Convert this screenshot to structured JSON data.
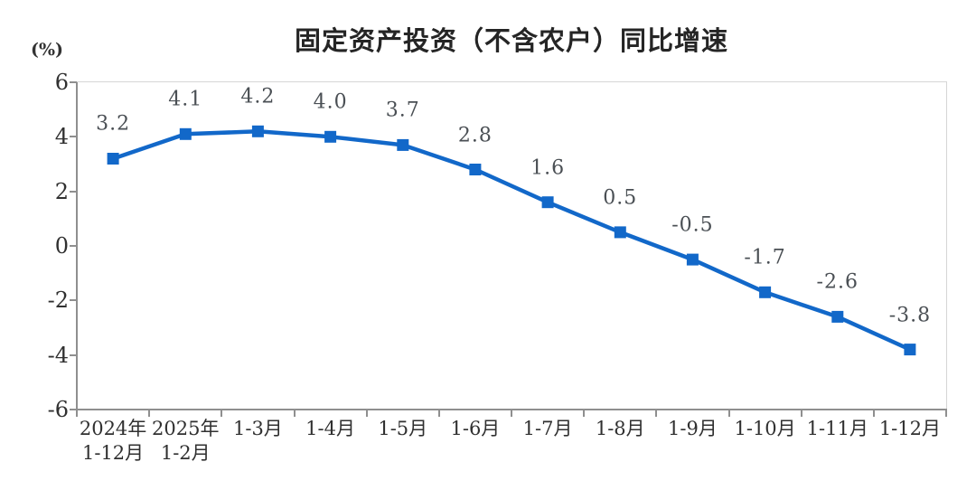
{
  "title": "固定资产投资（不含农户）同比增速",
  "y_axis_unit": "(%)",
  "chart_data": {
    "type": "line",
    "title": "固定资产投资（不含农户）同比增速",
    "ylabel": "(%)",
    "xlabel": "",
    "categories": [
      "2024年\n1-12月",
      "2025年\n1-2月",
      "1-3月",
      "1-4月",
      "1-5月",
      "1-6月",
      "1-7月",
      "1-8月",
      "1-9月",
      "1-10月",
      "1-11月",
      "1-12月"
    ],
    "values": [
      3.2,
      4.1,
      4.2,
      4.0,
      3.7,
      2.8,
      1.6,
      0.5,
      -0.5,
      -1.7,
      -2.6,
      -3.8
    ],
    "point_labels": [
      "3.2",
      "4.1",
      "4.2",
      "4.0",
      "3.7",
      "2.8",
      "1.6",
      "0.5",
      "-0.5",
      "-1.7",
      "-2.6",
      "-3.8"
    ],
    "ylim": [
      -6,
      6
    ],
    "ytick_step": 2,
    "yticks": [
      "6",
      "4",
      "2",
      "0",
      "-2",
      "-4",
      "-6"
    ],
    "grid": false,
    "legend_position": "none",
    "marker": "square",
    "line_color": "#1268c9"
  },
  "colors": {
    "line": "#1268c9",
    "marker": "#1268c9",
    "axis": "#8f8f8f",
    "frame": "#d6d6d6",
    "title_text": "#252525",
    "tick_text": "#303030",
    "data_label_text": "#4a4f54",
    "background": "#ffffff"
  }
}
